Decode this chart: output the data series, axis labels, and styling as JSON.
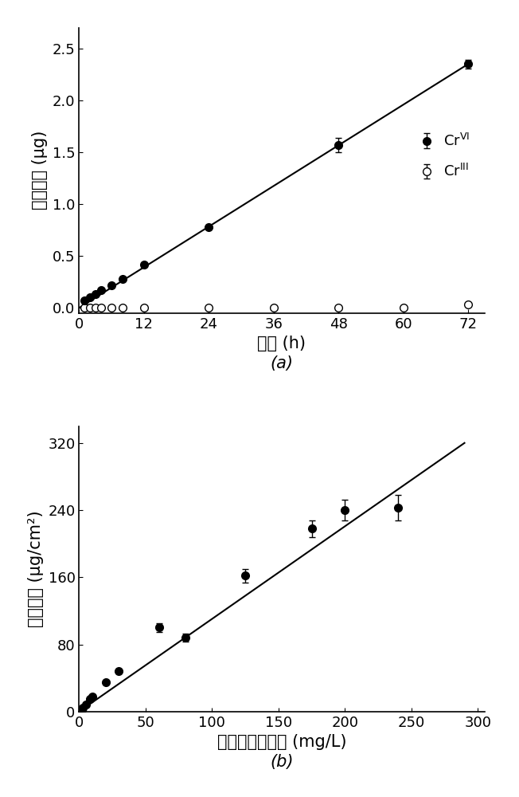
{
  "plot_a": {
    "crVI_x": [
      1,
      2,
      3,
      4,
      6,
      8,
      12,
      24,
      48,
      72
    ],
    "crVI_y": [
      0.07,
      0.1,
      0.13,
      0.17,
      0.22,
      0.28,
      0.42,
      0.78,
      1.57,
      2.35
    ],
    "crVI_yerr": [
      0.0,
      0.0,
      0.0,
      0.0,
      0.0,
      0.0,
      0.0,
      0.0,
      0.07,
      0.04
    ],
    "crIII_x": [
      1,
      2,
      3,
      4,
      6,
      8,
      12,
      24,
      36,
      48,
      60,
      72
    ],
    "crIII_y": [
      0.0,
      0.0,
      0.0,
      0.0,
      0.0,
      0.0,
      0.0,
      0.0,
      0.0,
      0.0,
      0.0,
      0.03
    ],
    "crIII_yerr": [
      0.0,
      0.0,
      0.0,
      0.0,
      0.0,
      0.0,
      0.0,
      0.0,
      0.0,
      0.0,
      0.0,
      0.0
    ],
    "fit_x": [
      0,
      72
    ],
    "fit_y": [
      0.0,
      2.35
    ],
    "xlabel": "时间 (h)",
    "ylabel": "鍴吸附量 (μg)",
    "xlim": [
      0,
      75
    ],
    "ylim": [
      -0.05,
      2.7
    ],
    "xticks": [
      0,
      12,
      24,
      36,
      48,
      60,
      72
    ],
    "yticks": [
      0.0,
      0.5,
      1.0,
      1.5,
      2.0,
      2.5
    ],
    "label": "(a)"
  },
  "plot_b": {
    "x": [
      1,
      2,
      3,
      5,
      8,
      10,
      20,
      30,
      60,
      80,
      125,
      175,
      200,
      240
    ],
    "y": [
      2,
      3,
      5,
      8,
      15,
      18,
      35,
      48,
      100,
      88,
      162,
      218,
      240,
      243
    ],
    "yerr": [
      0,
      0,
      0,
      0,
      0,
      0,
      0,
      0,
      5,
      5,
      8,
      10,
      12,
      15
    ],
    "fit_x": [
      0,
      290
    ],
    "fit_y": [
      0,
      320
    ],
    "xlabel": "六价鍴离子浓度 (mg/L)",
    "ylabel": "鍴吸附量 (μg/cm²)",
    "xlim": [
      0,
      305
    ],
    "ylim": [
      0,
      340
    ],
    "xticks": [
      0,
      50,
      100,
      150,
      200,
      250,
      300
    ],
    "yticks": [
      0,
      80,
      160,
      240,
      320
    ],
    "label": "(b)"
  },
  "bg_color": "#ffffff",
  "line_color": "#000000",
  "marker_color_filled": "#000000",
  "marker_color_open": "#ffffff",
  "marker_size": 7,
  "font_size_label": 15,
  "font_size_tick": 13,
  "font_size_legend": 13,
  "font_size_sublabel": 15
}
